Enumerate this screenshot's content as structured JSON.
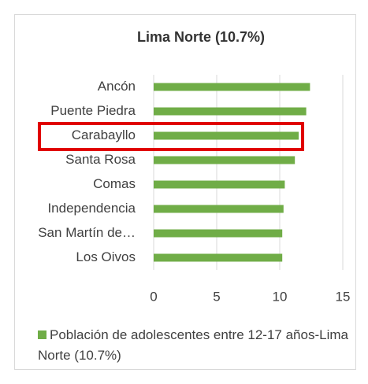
{
  "chart_data": {
    "type": "bar",
    "orientation": "horizontal",
    "title": "Lima Norte (10.7%)",
    "categories": [
      "Ancón",
      "Puente Piedra",
      "Carabayllo",
      "Santa Rosa",
      "Comas",
      "Independencia",
      "San Martín de…",
      "Los Oivos"
    ],
    "series": [
      {
        "name": "Población de adolescentes entre 12-17 años-Lima Norte (10.7%)",
        "color": "#70ad47",
        "values": [
          12.4,
          12.1,
          11.5,
          11.2,
          10.4,
          10.3,
          10.2,
          10.2
        ]
      }
    ],
    "xlim": [
      0,
      15
    ],
    "xticks": [
      0,
      5,
      10,
      15
    ],
    "grid": true,
    "legend": "bottom"
  }
}
